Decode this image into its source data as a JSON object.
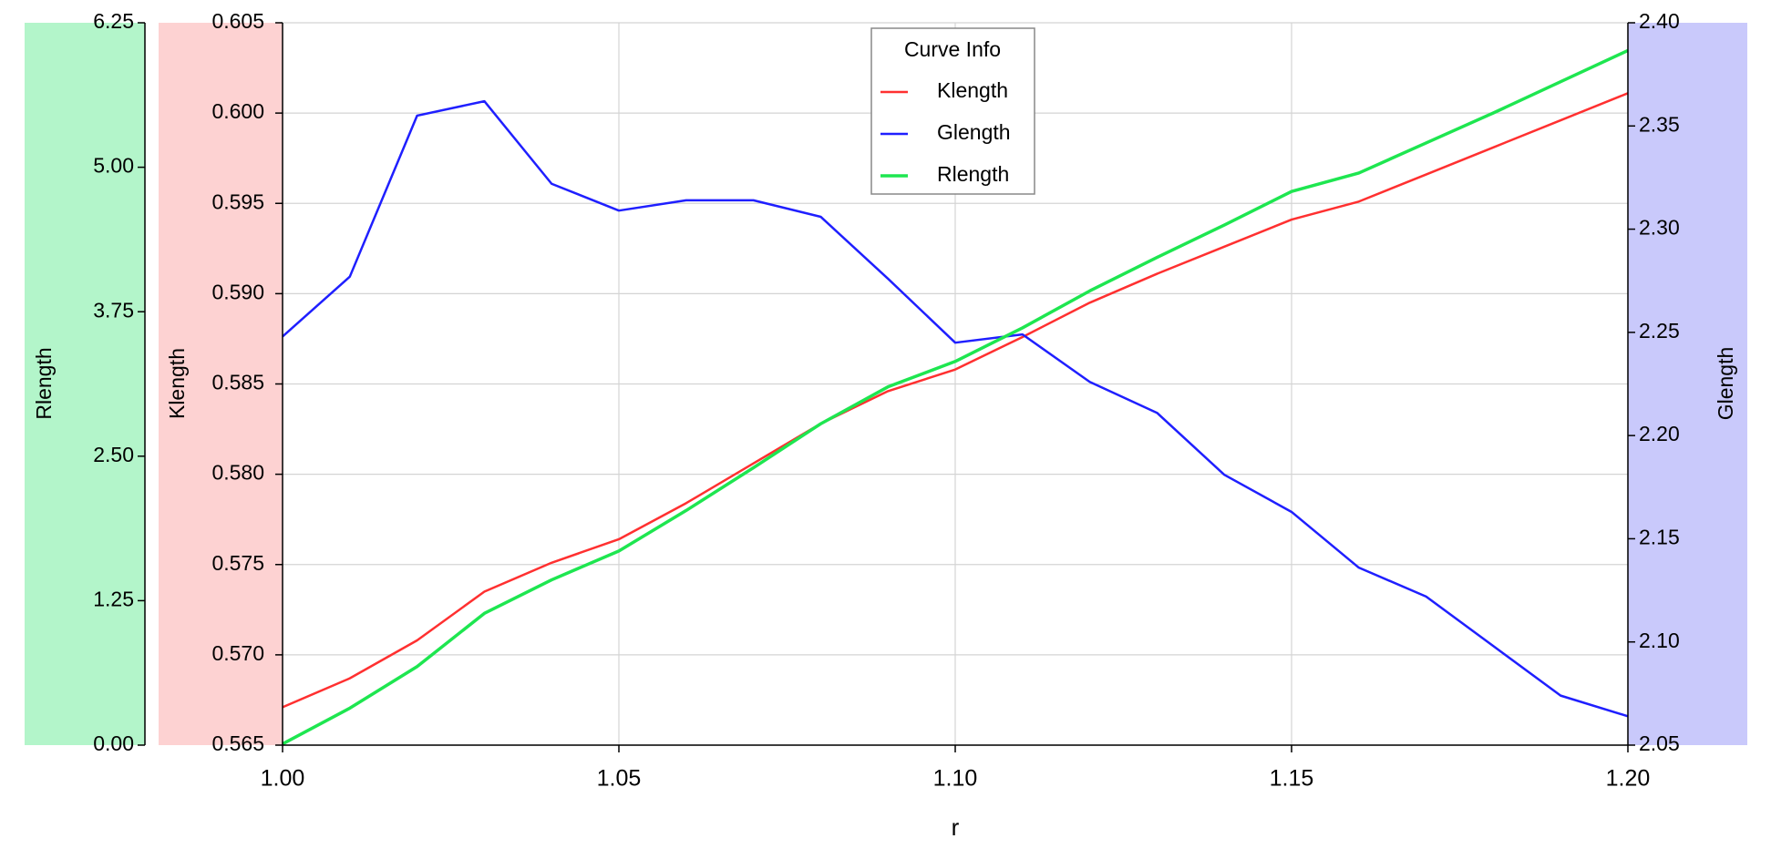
{
  "chart_data": {
    "type": "line",
    "legend_title": "Curve Info",
    "xlabel": "r",
    "ylabel": "Klength",
    "y2label": "Glength",
    "y3label": "Rlength",
    "x": [
      1.0,
      1.01,
      1.02,
      1.03,
      1.04,
      1.05,
      1.06,
      1.07,
      1.08,
      1.09,
      1.1,
      1.11,
      1.12,
      1.13,
      1.14,
      1.15,
      1.16,
      1.17,
      1.18,
      1.19,
      1.2
    ],
    "xlim": [
      1.0,
      1.2
    ],
    "xticks": [
      {
        "value": 1.0,
        "label": "1.00"
      },
      1.05,
      {
        "value": 1.1,
        "label": "1.10"
      },
      1.15,
      {
        "value": 1.2,
        "label": "1.20"
      }
    ],
    "ylim": [
      0.565,
      0.605
    ],
    "yticks": [
      0.565,
      {
        "value": 0.57,
        "label": "0.570"
      },
      0.575,
      {
        "value": 0.58,
        "label": "0.580"
      },
      0.585,
      {
        "value": 0.59,
        "label": "0.590"
      },
      0.595,
      {
        "value": 0.6,
        "label": "0.600"
      },
      0.605
    ],
    "y2lim": [
      2.05,
      2.4
    ],
    "y2ticks": [
      2.05,
      {
        "value": 2.1,
        "label": "2.10"
      },
      2.15,
      {
        "value": 2.2,
        "label": "2.20"
      },
      2.25,
      {
        "value": 2.3,
        "label": "2.30"
      },
      2.35,
      {
        "value": 2.4,
        "label": "2.40"
      }
    ],
    "y3lim": [
      0,
      6.25
    ],
    "y3ticks": [
      {
        "value": 0,
        "label": "0.00"
      },
      1.25,
      {
        "value": 2.5,
        "label": "2.50"
      },
      3.75,
      {
        "value": 5,
        "label": "5.00"
      },
      6.25
    ],
    "grid": true,
    "series": [
      {
        "name": "Klength",
        "color": "#ff3030",
        "axis": "y",
        "values": [
          0.5671,
          0.5687,
          0.5708,
          0.5735,
          0.5751,
          0.5764,
          0.5784,
          0.5806,
          0.5828,
          0.5846,
          0.5858,
          0.5876,
          0.5895,
          0.5911,
          0.5926,
          0.5941,
          0.5951,
          0.5966,
          0.5981,
          0.5996,
          0.6011
        ]
      },
      {
        "name": "Glength",
        "color": "#1f1fff",
        "axis": "y2",
        "values": [
          2.248,
          2.277,
          2.355,
          2.362,
          2.322,
          2.309,
          2.314,
          2.314,
          2.306,
          2.276,
          2.245,
          2.249,
          2.226,
          2.211,
          2.181,
          2.163,
          2.136,
          2.122,
          2.098,
          2.074,
          2.064
        ]
      },
      {
        "name": "Rlength",
        "color": "#1ee650",
        "axis": "y3",
        "values": [
          0.01,
          0.32,
          0.68,
          1.14,
          1.43,
          1.68,
          2.03,
          2.4,
          2.78,
          3.1,
          3.32,
          3.61,
          3.93,
          4.22,
          4.5,
          4.79,
          4.95,
          5.21,
          5.47,
          5.74,
          6.01
        ]
      }
    ]
  }
}
